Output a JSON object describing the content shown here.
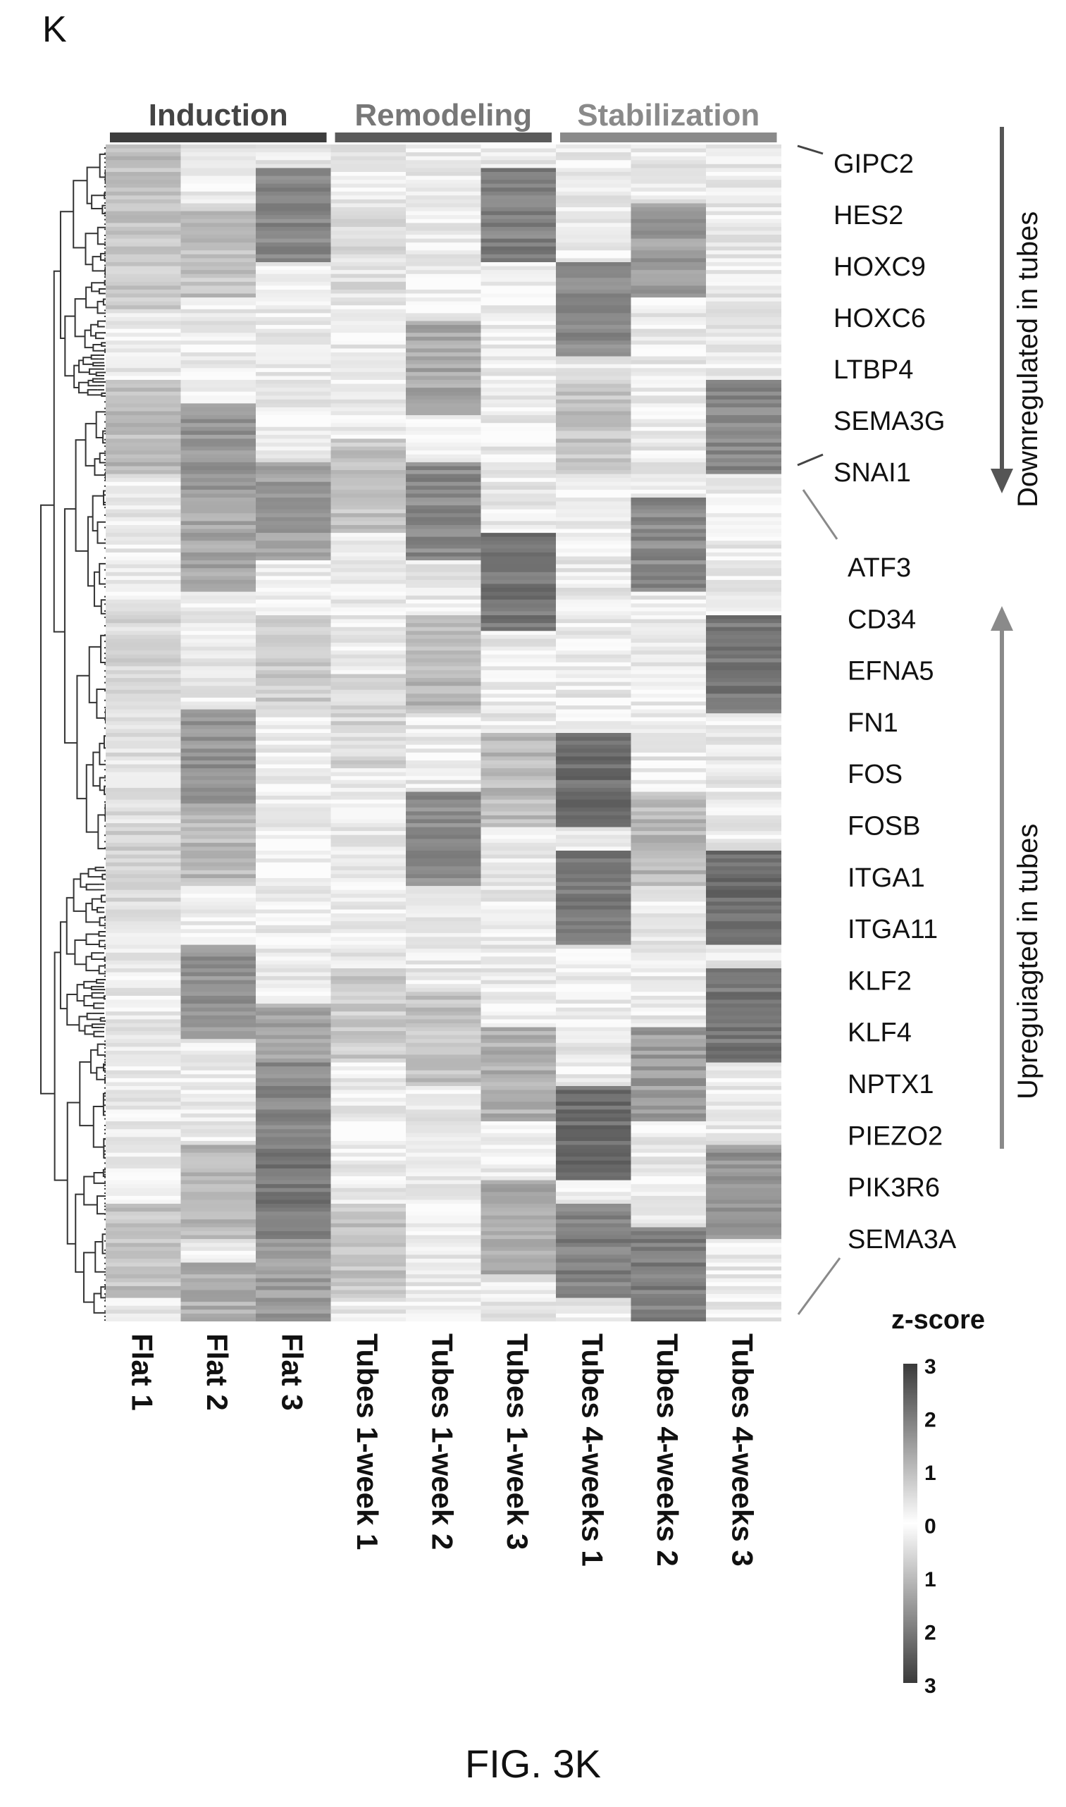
{
  "panel_letter": "K",
  "figure_caption": "FIG. 3K",
  "colors": {
    "bar_dark": "#3d3d3d",
    "bar_mid": "#5a5a5a",
    "bar_light": "#8a8a8a",
    "scale_high": "#3a3a3a",
    "scale_mid": "#ffffff",
    "scale_low": "#3a3a3a"
  },
  "chart_data": {
    "type": "heatmap",
    "title": "",
    "row_dendrogram": true,
    "groups": [
      {
        "label": "Induction",
        "columns": [
          "Flat 1",
          "Flat 2",
          "Flat 3"
        ]
      },
      {
        "label": "Remodeling",
        "columns": [
          "Tubes 1-week 1",
          "Tubes 1-week 2",
          "Tubes 1-week 3"
        ]
      },
      {
        "label": "Stabilization",
        "columns": [
          "Tubes 4-weeks 1",
          "Tubes 4-weeks 2",
          "Tubes 4-weeks 3"
        ]
      }
    ],
    "columns": [
      "Flat 1",
      "Flat 2",
      "Flat 3",
      "Tubes 1-week 1",
      "Tubes 1-week 2",
      "Tubes 1-week 3",
      "Tubes 4-weeks 1",
      "Tubes 4-weeks 2",
      "Tubes 4-weeks 3"
    ],
    "downregulated_genes": [
      "GIPC2",
      "HES2",
      "HOXC9",
      "HOXC6",
      "LTBP4",
      "SEMA3G",
      "SNAI1"
    ],
    "upregulated_genes": [
      "ATF3",
      "CD34",
      "EFNA5",
      "FN1",
      "FOS",
      "FOSB",
      "ITGA1",
      "ITGA11",
      "KLF2",
      "KLF4",
      "NPTX1",
      "PIEZO2",
      "PIK3R6",
      "SEMA3A"
    ],
    "down_arrow_label": "Downregulated in tubes",
    "up_arrow_label": "Upreguiagted in tubes",
    "colorbar": {
      "title": "z-score",
      "ticks": [
        "3",
        "2",
        "1",
        "0",
        "1",
        "2",
        "3"
      ],
      "range": [
        -3,
        3
      ]
    },
    "column_blocks": [
      {
        "column": "Flat 1",
        "blocks": [
          [
            0,
            0.3
          ],
          [
            0.06,
            0.25
          ],
          [
            0.2,
            0.35
          ],
          [
            0.4,
            0.2
          ],
          [
            0.5,
            0.15
          ],
          [
            0.58,
            0.2
          ],
          [
            0.9,
            0.3
          ]
        ]
      },
      {
        "column": "Flat 2",
        "blocks": [
          [
            0.05,
            0.3
          ],
          [
            0.22,
            0.55
          ],
          [
            0.3,
            0.45
          ],
          [
            0.48,
            0.55
          ],
          [
            0.55,
            0.35
          ],
          [
            0.68,
            0.55
          ],
          [
            0.85,
            0.35
          ],
          [
            0.95,
            0.4
          ]
        ]
      },
      {
        "column": "Flat 3",
        "blocks": [
          [
            0.02,
            0.6
          ],
          [
            0.27,
            0.5
          ],
          [
            0.4,
            0.25
          ],
          [
            0.73,
            0.45
          ],
          [
            0.78,
            0.6
          ],
          [
            0.85,
            0.7
          ],
          [
            0.92,
            0.5
          ]
        ]
      },
      {
        "column": "Tubes 1-week 1",
        "blocks": [
          [
            0.05,
            0.15
          ],
          [
            0.25,
            0.3
          ],
          [
            0.45,
            0.2
          ],
          [
            0.7,
            0.25
          ],
          [
            0.9,
            0.3
          ]
        ]
      },
      {
        "column": "Tubes 1-week 2",
        "blocks": [
          [
            0.15,
            0.45
          ],
          [
            0.27,
            0.6
          ],
          [
            0.4,
            0.35
          ],
          [
            0.55,
            0.6
          ],
          [
            0.72,
            0.3
          ]
        ]
      },
      {
        "column": "Tubes 1-week 3",
        "blocks": [
          [
            0.02,
            0.65
          ],
          [
            0.33,
            0.7
          ],
          [
            0.5,
            0.35
          ],
          [
            0.75,
            0.4
          ],
          [
            0.88,
            0.45
          ]
        ]
      },
      {
        "column": "Tubes 4-weeks 1",
        "blocks": [
          [
            0.1,
            0.6
          ],
          [
            0.2,
            0.3
          ],
          [
            0.5,
            0.75
          ],
          [
            0.6,
            0.7
          ],
          [
            0.8,
            0.75
          ],
          [
            0.9,
            0.65
          ]
        ]
      },
      {
        "column": "Tubes 4-weeks 2",
        "blocks": [
          [
            0.05,
            0.5
          ],
          [
            0.3,
            0.6
          ],
          [
            0.55,
            0.35
          ],
          [
            0.75,
            0.5
          ],
          [
            0.92,
            0.65
          ]
        ]
      },
      {
        "column": "Tubes 4-weeks 3",
        "blocks": [
          [
            0.2,
            0.6
          ],
          [
            0.4,
            0.7
          ],
          [
            0.6,
            0.75
          ],
          [
            0.7,
            0.7
          ],
          [
            0.85,
            0.55
          ]
        ]
      }
    ]
  }
}
